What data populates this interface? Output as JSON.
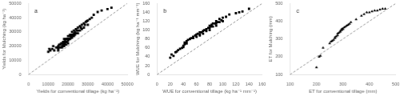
{
  "chart_data": [
    {
      "type": "scatter",
      "annotations": [
        "a"
      ],
      "xlabel": "Yields for conventional tillage (kg ha⁻¹)",
      "ylabel": "Yields for Mulching (kg ha⁻¹)",
      "xlim": [
        0,
        50000
      ],
      "ylim": [
        0,
        50000
      ],
      "xticks": [
        0,
        10000,
        20000,
        30000,
        40000,
        50000
      ],
      "yticks": [
        0,
        10000,
        20000,
        30000,
        40000,
        50000
      ],
      "grid": false,
      "series": [
        {
          "type": "line",
          "line_style": "dashed",
          "color": "#999999",
          "x": [
            0,
            50000
          ],
          "values": [
            0,
            50000
          ]
        },
        {
          "type": "scatter",
          "marker": "square",
          "color": "black",
          "x": [
            10000,
            10500,
            11000,
            12000,
            12500,
            13000,
            14000,
            15000,
            15000,
            15000,
            15000,
            15500,
            16000,
            16000,
            16500,
            17000,
            17000,
            17000,
            17500,
            17500,
            18000,
            18000,
            18000,
            18000,
            18000,
            18500,
            18500,
            19000,
            19000,
            19000,
            19500,
            19500,
            20000,
            20000,
            20000,
            20000,
            20500,
            21000,
            21000,
            21000,
            21500,
            22000,
            22000,
            22000,
            22000,
            22500,
            23000,
            23000,
            23000,
            23500,
            23500,
            24000,
            24000,
            24500,
            25000,
            25000,
            25000,
            26000,
            26000,
            26500,
            27000,
            27000,
            28000,
            28000,
            28500,
            29000,
            29500,
            30000,
            30000,
            31000,
            32000,
            33000,
            35000,
            37000,
            40000,
            42000
          ],
          "values": [
            16000,
            18000,
            17000,
            18000,
            20000,
            17000,
            19000,
            17000,
            18000,
            19000,
            20000,
            21000,
            19000,
            21000,
            22000,
            19000,
            20000,
            22000,
            21000,
            23000,
            20000,
            21000,
            22000,
            23000,
            25000,
            22000,
            24000,
            21000,
            23000,
            25000,
            23000,
            25000,
            22000,
            24000,
            25000,
            27000,
            25000,
            25000,
            27000,
            28000,
            26000,
            26000,
            27000,
            28000,
            30000,
            28000,
            27000,
            29000,
            31000,
            28000,
            30000,
            29000,
            32000,
            31000,
            29000,
            31000,
            33000,
            31000,
            34000,
            33000,
            32000,
            35000,
            33000,
            36000,
            35000,
            37000,
            37500,
            35000,
            38000,
            39000,
            40000,
            42000,
            44000,
            45000,
            46000,
            47000
          ]
        }
      ]
    },
    {
      "type": "scatter",
      "annotations": [
        "b"
      ],
      "xlabel": "WUE for conventional tillage (kg ha⁻¹ mm⁻¹)",
      "ylabel": "WUE for Mulching (kg ha⁻¹ mm⁻¹)",
      "xlim": [
        0,
        160
      ],
      "ylim": [
        0,
        160
      ],
      "xticks": [
        0,
        20,
        40,
        60,
        80,
        100,
        120,
        140,
        160
      ],
      "yticks": [
        0,
        20,
        40,
        60,
        80,
        100,
        120,
        140,
        160
      ],
      "grid": false,
      "series": [
        {
          "type": "line",
          "line_style": "dashed",
          "color": "#999999",
          "x": [
            0,
            160
          ],
          "values": [
            0,
            160
          ]
        },
        {
          "type": "scatter",
          "marker": "square",
          "color": "black",
          "x": [
            20,
            22,
            25,
            28,
            30,
            32,
            35,
            38,
            40,
            40,
            42,
            42,
            45,
            45,
            47,
            50,
            52,
            55,
            55,
            58,
            60,
            60,
            62,
            65,
            65,
            65,
            68,
            70,
            70,
            72,
            75,
            75,
            78,
            80,
            80,
            80,
            82,
            83,
            85,
            85,
            88,
            90,
            90,
            90,
            92,
            95,
            95,
            98,
            100,
            100,
            105,
            110,
            120,
            125,
            130,
            140
          ],
          "values": [
            38,
            45,
            42,
            50,
            52,
            55,
            58,
            60,
            62,
            65,
            68,
            72,
            70,
            75,
            78,
            80,
            82,
            82,
            85,
            88,
            85,
            90,
            92,
            88,
            90,
            95,
            95,
            92,
            98,
            100,
            98,
            102,
            105,
            100,
            105,
            110,
            108,
            112,
            108,
            115,
            115,
            110,
            115,
            120,
            118,
            118,
            125,
            122,
            120,
            128,
            130,
            135,
            138,
            140,
            142,
            148
          ]
        }
      ]
    },
    {
      "type": "scatter",
      "annotations": [
        "c"
      ],
      "xlabel": "ET for conventional tillage (mm)",
      "ylabel": "ET for Mulching (mm)",
      "xlim": [
        100,
        500
      ],
      "ylim": [
        100,
        500
      ],
      "xticks": [
        100,
        200,
        300,
        400,
        500
      ],
      "yticks": [
        100,
        200,
        300,
        400,
        500
      ],
      "grid": false,
      "series": [
        {
          "type": "line",
          "line_style": "dashed",
          "color": "#999999",
          "x": [
            100,
            500
          ],
          "values": [
            100,
            500
          ]
        },
        {
          "type": "scatter",
          "marker": "triangle",
          "color": "black",
          "x": [
            200,
            210,
            215,
            225,
            250,
            255,
            260,
            265,
            270,
            270,
            275,
            280,
            280,
            285,
            290,
            290,
            295,
            295,
            300,
            300,
            305,
            310,
            315,
            320,
            325,
            330,
            350,
            370,
            380,
            390,
            400,
            410,
            420,
            430,
            440,
            450,
            460
          ],
          "values": [
            140,
            200,
            205,
            250,
            275,
            285,
            290,
            295,
            305,
            310,
            315,
            320,
            330,
            335,
            340,
            345,
            350,
            355,
            355,
            360,
            365,
            370,
            375,
            380,
            385,
            395,
            410,
            430,
            440,
            450,
            450,
            455,
            460,
            460,
            465,
            470,
            470
          ]
        }
      ]
    }
  ]
}
